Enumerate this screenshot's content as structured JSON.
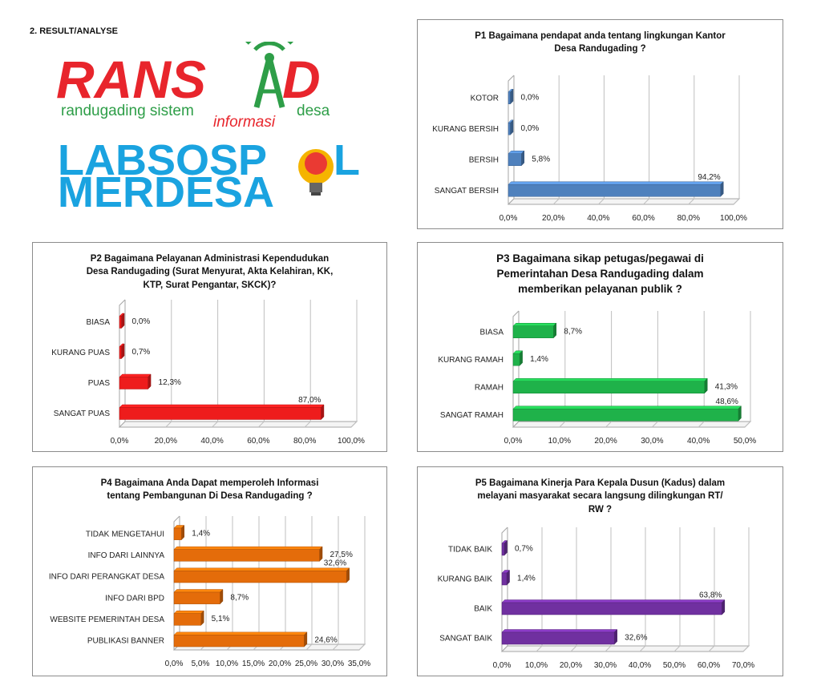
{
  "header": {
    "section_label": "2. RESULT/ANALYSE"
  },
  "logo": {
    "ransad_left": "RANS",
    "ransad_right": "D",
    "tagline_left": "randugading sistem",
    "tagline_mid": "informasi",
    "tagline_right": "desa",
    "line2": "LABSOSP",
    "line2_end": "L",
    "line3": "MERDESA",
    "colors": {
      "red": "#e8252c",
      "green": "#2e9e48",
      "blue": "#1aa3e0"
    }
  },
  "chart_data": [
    {
      "type": "bar",
      "title_lines": [
        "P1 Bagaimana pendapat anda tentang lingkungan Kantor",
        "Desa Randugading ?"
      ],
      "categories": [
        "KOTOR",
        "KURANG BERSIH",
        "BERSIH",
        "SANGAT BERSIH"
      ],
      "values": [
        0.0,
        0.0,
        5.8,
        94.2
      ],
      "value_labels": [
        "0,0%",
        "0,0%",
        "5,8%",
        "94,2%"
      ],
      "xlim": [
        0,
        100
      ],
      "ticks": [
        "0,0%",
        "20,0%",
        "40,0%",
        "60,0%",
        "80,0%",
        "100,0%"
      ],
      "color": "#4f81bd",
      "grid": true
    },
    {
      "type": "bar",
      "title_lines": [
        "P2 Bagaimana Pelayanan Administrasi Kependudukan",
        "Desa Randugading (Surat Menyurat, Akta Kelahiran, KK,",
        "KTP, Surat Pengantar, SKCK)?"
      ],
      "categories": [
        "BIASA",
        "KURANG PUAS",
        "PUAS",
        "SANGAT PUAS"
      ],
      "values": [
        0.0,
        0.7,
        12.3,
        87.0
      ],
      "value_labels": [
        "0,0%",
        "0,7%",
        "12,3%",
        "87,0%"
      ],
      "xlim": [
        0,
        100
      ],
      "ticks": [
        "0,0%",
        "20,0%",
        "40,0%",
        "60,0%",
        "80,0%",
        "100,0%"
      ],
      "color": "#ee1c1c",
      "grid": true
    },
    {
      "type": "bar",
      "title_lines": [
        "P3 Bagaimana sikap petugas/pegawai di",
        "Pemerintahan Desa Randugading dalam",
        "memberikan pelayanan publik ?"
      ],
      "categories": [
        "BIASA",
        "KURANG RAMAH",
        "RAMAH",
        "SANGAT RAMAH"
      ],
      "values": [
        8.7,
        1.4,
        41.3,
        48.6
      ],
      "value_labels": [
        "8,7%",
        "1,4%",
        "41,3%",
        "48,6%"
      ],
      "xlim": [
        0,
        50
      ],
      "ticks": [
        "0,0%",
        "10,0%",
        "20,0%",
        "30,0%",
        "40,0%",
        "50,0%"
      ],
      "color": "#1fb24a",
      "grid": true
    },
    {
      "type": "bar",
      "title_lines": [
        "P4 Bagaimana Anda Dapat memperoleh Informasi",
        "tentang Pembangunan Di Desa Randugading ?"
      ],
      "categories": [
        "TIDAK MENGETAHUI",
        "INFO DARI LAINNYA",
        "INFO DARI PERANGKAT DESA",
        "INFO DARI BPD",
        "WEBSITE PEMERINTAH DESA",
        "PUBLIKASI BANNER"
      ],
      "values": [
        1.4,
        27.5,
        32.6,
        8.7,
        5.1,
        24.6
      ],
      "value_labels": [
        "1,4%",
        "27,5%",
        "32,6%",
        "8,7%",
        "5,1%",
        "24,6%"
      ],
      "xlim": [
        0,
        35
      ],
      "ticks": [
        "0,0%",
        "5,0%",
        "10,0%",
        "15,0%",
        "20,0%",
        "25,0%",
        "30,0%",
        "35,0%"
      ],
      "color": "#e46c0a",
      "grid": true
    },
    {
      "type": "bar",
      "title_lines": [
        "P5 Bagaimana Kinerja Para Kepala Dusun (Kadus) dalam",
        "melayani masyarakat secara langsung dilingkungan RT/",
        "RW ?"
      ],
      "categories": [
        "TIDAK BAIK",
        "KURANG BAIK",
        "BAIK",
        "SANGAT BAIK"
      ],
      "values": [
        0.7,
        1.4,
        63.8,
        32.6
      ],
      "value_labels": [
        "0,7%",
        "1,4%",
        "63,8%",
        "32,6%"
      ],
      "xlim": [
        0,
        70
      ],
      "ticks": [
        "0,0%",
        "10,0%",
        "20,0%",
        "30,0%",
        "40,0%",
        "50,0%",
        "60,0%",
        "70,0%"
      ],
      "color": "#7030a0",
      "grid": true
    }
  ]
}
